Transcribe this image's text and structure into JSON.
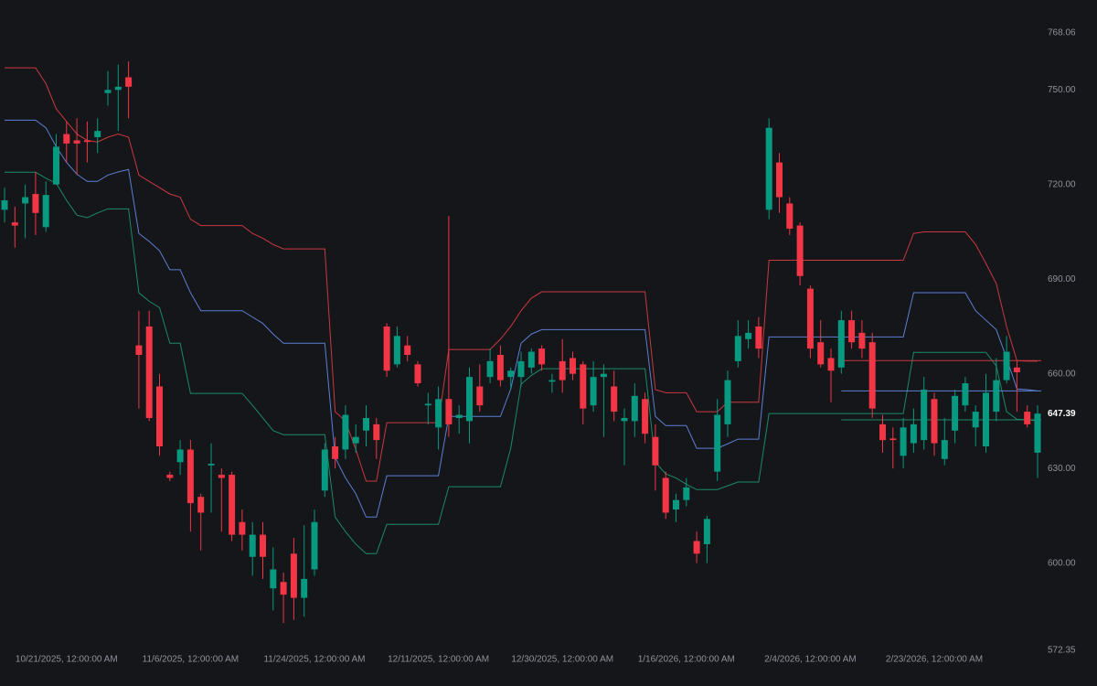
{
  "chart_data": {
    "type": "candlestick",
    "categories": [
      null,
      null,
      null,
      null,
      null,
      null,
      "10/21/2025, 12:00:00 AM",
      null,
      null,
      null,
      null,
      null,
      null,
      null,
      null,
      null,
      null,
      null,
      "11/6/2025, 12:00:00 AM",
      null,
      null,
      null,
      null,
      null,
      null,
      null,
      null,
      null,
      null,
      null,
      "11/24/2025, 12:00:00 AM",
      null,
      null,
      null,
      null,
      null,
      null,
      null,
      null,
      null,
      null,
      null,
      "12/11/2025, 12:00:00 AM",
      null,
      null,
      null,
      null,
      null,
      null,
      null,
      null,
      null,
      null,
      null,
      "12/30/2025, 12:00:00 AM",
      null,
      null,
      null,
      null,
      null,
      null,
      null,
      null,
      null,
      null,
      null,
      "1/16/2026, 12:00:00 AM",
      null,
      null,
      null,
      null,
      null,
      null,
      null,
      null,
      null,
      null,
      null,
      "2/4/2026, 12:00:00 AM",
      null,
      null,
      null,
      null,
      null,
      null,
      null,
      null,
      null,
      null,
      null,
      "2/23/2026, 12:00:00 AM",
      null,
      null,
      null,
      null,
      null,
      null,
      null,
      null,
      null,
      null
    ],
    "candles": {
      "up_color": "#089981",
      "down_color": "#f23645",
      "open": [
        712,
        708,
        714,
        717,
        706.5,
        720,
        736,
        734,
        734,
        735,
        749,
        750,
        754,
        669,
        675,
        656,
        628,
        632,
        636,
        621,
        631,
        628,
        628,
        613,
        602,
        609,
        592,
        594,
        603,
        589,
        598,
        623,
        637,
        636,
        638,
        642,
        644,
        675,
        663,
        669,
        663,
        650,
        643,
        652,
        646,
        645,
        656,
        659,
        666,
        659,
        659,
        662,
        668,
        657.5,
        664,
        665,
        663,
        650,
        659,
        656,
        645,
        645,
        652,
        640,
        627,
        617,
        620,
        607,
        606,
        629,
        644,
        664,
        671,
        675,
        712,
        727,
        714,
        707,
        687,
        670,
        665,
        662,
        677,
        673,
        670,
        644,
        639.5,
        634,
        638,
        639,
        652,
        633,
        642,
        650,
        643,
        637,
        648,
        658,
        662,
        648,
        635
      ],
      "high": [
        719,
        713,
        720,
        724,
        721,
        736,
        740,
        741,
        740,
        741,
        756,
        758,
        759,
        680,
        680,
        660,
        629,
        639,
        639,
        622,
        638,
        630,
        629,
        617,
        613,
        613,
        605,
        597,
        608,
        612,
        617,
        638,
        640,
        650,
        644,
        650,
        646,
        676,
        675,
        672,
        664,
        654,
        656,
        710,
        650,
        662,
        663,
        668,
        669,
        662,
        667,
        668,
        669,
        660,
        671,
        667,
        664,
        664,
        663,
        661,
        649,
        657,
        654,
        644,
        629,
        622,
        627,
        610,
        615,
        652,
        661,
        677,
        677,
        678,
        741,
        730,
        716,
        708,
        688,
        677,
        668,
        680,
        680,
        677,
        673,
        647,
        643,
        646,
        649,
        659,
        654,
        646,
        655,
        659,
        650,
        660,
        665,
        672,
        664,
        650,
        650
      ],
      "low": [
        708,
        700,
        703,
        704,
        705,
        720,
        727,
        723,
        727,
        730,
        745,
        737,
        741,
        649,
        645,
        634,
        626,
        628,
        610,
        604,
        616,
        610,
        607,
        604,
        596,
        595,
        585,
        581,
        582,
        583,
        596,
        621,
        630,
        633,
        635,
        637,
        633,
        659,
        662,
        664,
        656,
        644,
        636,
        640,
        641,
        638,
        648,
        657,
        656,
        655,
        656,
        660,
        661,
        654,
        654,
        658,
        644,
        648,
        640,
        645,
        631,
        640,
        638,
        623,
        614,
        613,
        618,
        600,
        600,
        626,
        640,
        662,
        668,
        665,
        709,
        711,
        704,
        688,
        665,
        662,
        651,
        660,
        668,
        665,
        646,
        635,
        630,
        630,
        635,
        636,
        634,
        631,
        638,
        648,
        637,
        635,
        645,
        657,
        648,
        643,
        627
      ],
      "close": [
        715,
        707,
        716,
        711,
        716.7,
        732,
        733,
        733,
        733.5,
        737,
        750,
        751,
        751,
        666,
        646,
        637,
        627,
        636,
        619,
        616,
        631.5,
        627,
        609,
        609,
        609,
        602,
        598,
        590,
        589,
        595,
        613,
        636,
        633,
        647,
        640,
        646,
        639,
        661,
        672,
        666,
        657,
        650.5,
        652,
        644,
        647,
        659,
        650,
        664,
        658,
        661,
        664,
        667,
        663,
        658,
        658,
        660,
        649,
        659,
        660,
        648,
        646,
        653,
        641,
        631,
        616,
        620,
        624,
        603,
        614,
        647,
        658,
        672,
        673,
        668,
        738,
        716,
        706,
        691,
        668,
        663,
        661,
        677,
        670,
        668,
        649,
        639,
        639,
        643,
        644,
        655,
        638,
        639,
        653,
        657,
        648,
        654,
        658,
        667,
        660.5,
        644,
        647.39
      ]
    },
    "series": [
      {
        "color": "#c8393f",
        "values": [
          757,
          757,
          757,
          757,
          752,
          744,
          740,
          736,
          734,
          733.5,
          735,
          736,
          735,
          723,
          721,
          719,
          717,
          716,
          709,
          707,
          707,
          707,
          707,
          707,
          704.5,
          703,
          701,
          699.6,
          699.6,
          699.6,
          699.6,
          699.6,
          648,
          645,
          636,
          626,
          626,
          644.5,
          644.5,
          644.5,
          644.5,
          644.5,
          644.5,
          667.7,
          667.7,
          667.7,
          667.7,
          667.7,
          671,
          675,
          680,
          684,
          686,
          686,
          686,
          686,
          686,
          686,
          686,
          686,
          686,
          686,
          686,
          655,
          654,
          654,
          654,
          648,
          648,
          648,
          651,
          651,
          651,
          651,
          696,
          696,
          696,
          696,
          696,
          696,
          696,
          696,
          696,
          696,
          696,
          696,
          696,
          696,
          704.5,
          705,
          705,
          705,
          705,
          705,
          701,
          695,
          688.6,
          675,
          664.2,
          664,
          664
        ]
      },
      {
        "color": "#5b7fd4",
        "values": [
          740.4,
          740.4,
          740.4,
          740.4,
          738,
          732,
          727,
          723.3,
          721,
          721,
          723,
          724,
          724.8,
          704.5,
          702,
          699,
          693,
          693,
          685.7,
          680,
          680,
          680,
          680,
          680,
          678,
          676,
          672.6,
          669.7,
          669.7,
          669.7,
          669.7,
          669.7,
          633.5,
          627,
          622,
          614.6,
          614.6,
          627.7,
          627.7,
          627.7,
          627.7,
          627.7,
          627.7,
          646.5,
          646.5,
          646.5,
          646.5,
          646.5,
          646.5,
          655.2,
          669.7,
          672.6,
          674,
          674,
          674,
          674,
          674,
          674,
          674,
          674,
          674,
          674,
          674,
          646.5,
          643.6,
          643.6,
          643.6,
          636.4,
          636.4,
          636.4,
          637.8,
          639.3,
          639.3,
          639.3,
          671.7,
          671.7,
          671.7,
          671.7,
          671.7,
          671.7,
          671.7,
          671.7,
          671.7,
          671.7,
          671.7,
          671.7,
          671.7,
          671.7,
          685.7,
          685.7,
          685.7,
          685.7,
          685.7,
          685.7,
          680,
          677,
          674,
          665,
          655.2,
          655,
          654.6
        ]
      },
      {
        "color": "#1b8a66",
        "values": [
          723.9,
          723.9,
          723.9,
          723.9,
          722,
          720.4,
          715,
          710.3,
          709.5,
          711,
          712.3,
          712.3,
          712.3,
          685.7,
          683,
          681,
          669.7,
          669.7,
          653.8,
          653.8,
          653.8,
          653.8,
          653.8,
          653.8,
          650,
          646,
          642,
          640.7,
          640.7,
          640.7,
          640.7,
          640.7,
          614.6,
          610,
          606,
          603,
          603,
          612.3,
          612.3,
          612.3,
          612.3,
          612.3,
          612.3,
          624.2,
          624.2,
          624.2,
          624.2,
          624.2,
          624.2,
          636.4,
          656.7,
          659.5,
          661.6,
          661.6,
          661.6,
          661.6,
          661.6,
          661.6,
          661.6,
          661.6,
          661.6,
          661.6,
          661.6,
          632,
          628.3,
          627,
          625,
          623.3,
          623.3,
          623.3,
          624.5,
          625.7,
          625.7,
          625.7,
          647.4,
          647.4,
          647.4,
          647.4,
          647.4,
          647.4,
          647.4,
          647.4,
          647.4,
          647.4,
          647.4,
          647.4,
          647.4,
          647.4,
          666.8,
          666.8,
          666.8,
          666.8,
          666.8,
          666.8,
          666.8,
          666.8,
          662.5,
          648,
          645.6,
          645.5,
          645
        ]
      }
    ],
    "hlines": [
      {
        "value": 664.2,
        "color": "#c8393f",
        "from": 81
      },
      {
        "value": 654.6,
        "color": "#5b7fd4",
        "from": 81
      },
      {
        "value": 645.4,
        "color": "#1b8a66",
        "from": 81
      }
    ],
    "last_price": 647.39,
    "ylim": [
      572.35,
      768.06
    ],
    "yticks": [
      572.35,
      {
        "value": 600,
        "label": "600.00"
      },
      {
        "value": 630,
        "label": "630.00"
      },
      {
        "value": 660,
        "label": "660.00"
      },
      {
        "value": 690,
        "label": "690.00"
      },
      {
        "value": 720,
        "label": "720.00"
      },
      {
        "value": 750,
        "label": "750.00"
      },
      768.06
    ]
  }
}
